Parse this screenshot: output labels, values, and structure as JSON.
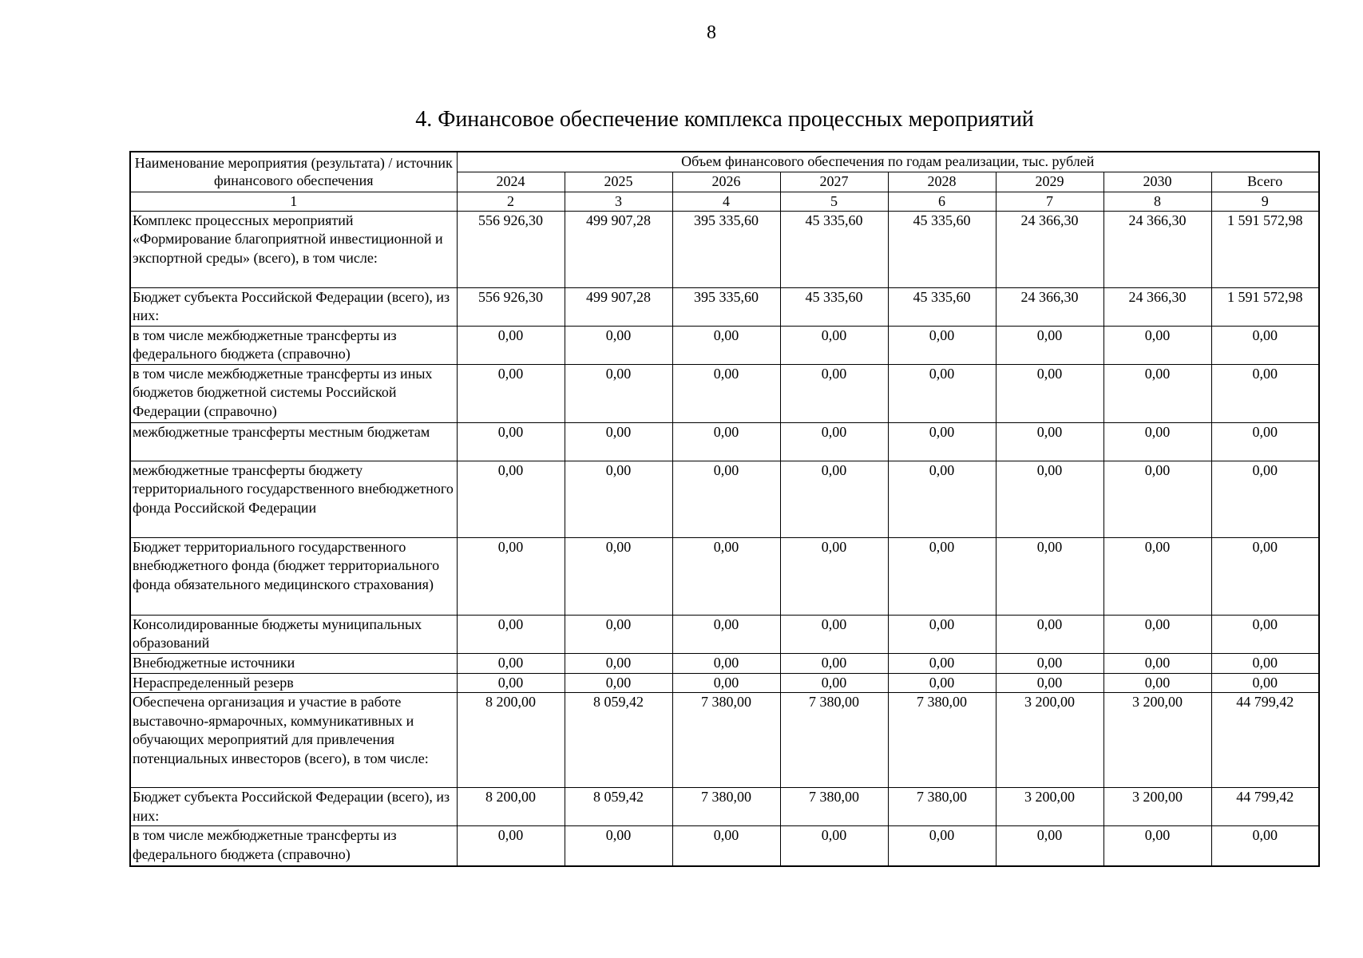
{
  "page_number": "8",
  "title": "4. Финансовое обеспечение комплекса процессных мероприятий",
  "table": {
    "header": {
      "name_header": "Наименование мероприятия (результата) / источник финансового обеспечения",
      "group_header": "Объем финансового обеспечения по годам реализации, тыс. рублей",
      "columns": [
        "2024",
        "2025",
        "2026",
        "2027",
        "2028",
        "2029",
        "2030",
        "Всего"
      ],
      "column_numbers": [
        "1",
        "2",
        "3",
        "4",
        "5",
        "6",
        "7",
        "8",
        "9"
      ]
    },
    "rows": [
      {
        "name": "Комплекс процессных мероприятий «Формирование благоприятной инвестиционной и экспортной среды» (всего), в том числе:",
        "values": [
          "556 926,30",
          "499 907,28",
          "395 335,60",
          "45 335,60",
          "45 335,60",
          "24 366,30",
          "24 366,30",
          "1 591 572,98"
        ]
      },
      {
        "name": "Бюджет субъекта Российской Федерации (всего), из них:",
        "values": [
          "556 926,30",
          "499 907,28",
          "395 335,60",
          "45 335,60",
          "45 335,60",
          "24 366,30",
          "24 366,30",
          "1 591 572,98"
        ]
      },
      {
        "name": "в том числе межбюджетные трансферты из федерального бюджета (справочно)",
        "values": [
          "0,00",
          "0,00",
          "0,00",
          "0,00",
          "0,00",
          "0,00",
          "0,00",
          "0,00"
        ]
      },
      {
        "name": "в том числе межбюджетные трансферты из иных бюджетов бюджетной системы Российской Федерации (справочно)",
        "values": [
          "0,00",
          "0,00",
          "0,00",
          "0,00",
          "0,00",
          "0,00",
          "0,00",
          "0,00"
        ]
      },
      {
        "name": "межбюджетные трансферты местным бюджетам",
        "values": [
          "0,00",
          "0,00",
          "0,00",
          "0,00",
          "0,00",
          "0,00",
          "0,00",
          "0,00"
        ]
      },
      {
        "name": "межбюджетные трансферты бюджету территориального государственного внебюджетного фонда Российской Федерации",
        "values": [
          "0,00",
          "0,00",
          "0,00",
          "0,00",
          "0,00",
          "0,00",
          "0,00",
          "0,00"
        ]
      },
      {
        "name": "Бюджет территориального государственного внебюджетного фонда (бюджет территориального фонда обязательного медицинского страхования)",
        "values": [
          "0,00",
          "0,00",
          "0,00",
          "0,00",
          "0,00",
          "0,00",
          "0,00",
          "0,00"
        ]
      },
      {
        "name": "Консолидированные бюджеты муниципальных образований",
        "values": [
          "0,00",
          "0,00",
          "0,00",
          "0,00",
          "0,00",
          "0,00",
          "0,00",
          "0,00"
        ]
      },
      {
        "name": "Внебюджетные источники",
        "values": [
          "0,00",
          "0,00",
          "0,00",
          "0,00",
          "0,00",
          "0,00",
          "0,00",
          "0,00"
        ]
      },
      {
        "name": "Нераспределенный резерв",
        "values": [
          "0,00",
          "0,00",
          "0,00",
          "0,00",
          "0,00",
          "0,00",
          "0,00",
          "0,00"
        ]
      },
      {
        "name": "Обеспечена организация и участие в работе выставочно-ярмарочных, коммуникативных и обучающих мероприятий для привлечения потенциальных инвесторов (всего), в том числе:",
        "values": [
          "8 200,00",
          "8 059,42",
          "7 380,00",
          "7 380,00",
          "7 380,00",
          "3 200,00",
          "3 200,00",
          "44 799,42"
        ]
      },
      {
        "name": "Бюджет субъекта Российской Федерации (всего), из них:",
        "values": [
          "8 200,00",
          "8 059,42",
          "7 380,00",
          "7 380,00",
          "7 380,00",
          "3 200,00",
          "3 200,00",
          "44 799,42"
        ]
      },
      {
        "name": "в том числе межбюджетные трансферты из федерального бюджета (справочно)",
        "values": [
          "0,00",
          "0,00",
          "0,00",
          "0,00",
          "0,00",
          "0,00",
          "0,00",
          "0,00"
        ]
      }
    ]
  }
}
